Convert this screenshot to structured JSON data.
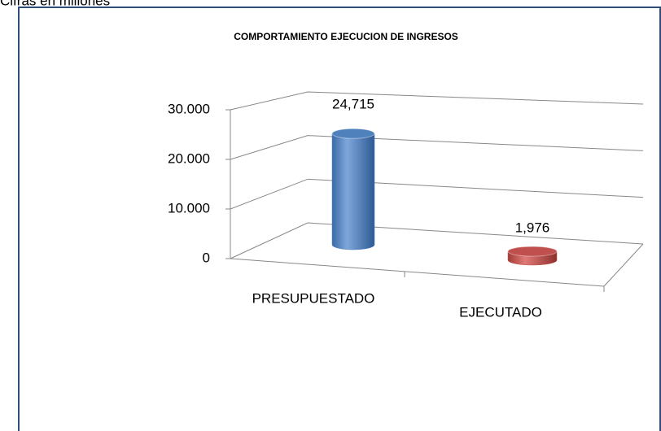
{
  "note_text": "Cifras en millones",
  "chart_data": {
    "type": "bar3d",
    "title": "COMPORTAMIENTO EJECUCION DE INGRESOS",
    "categories": [
      "PRESUPUESTADO",
      "EJECUTADO"
    ],
    "values": [
      24715,
      1976
    ],
    "value_labels": [
      "24,715",
      "1,976"
    ],
    "colors": [
      "#4f81bd",
      "#c0504d"
    ],
    "ylim": [
      0,
      30000
    ],
    "yticks": [
      0,
      {
        "value": 10000,
        "label": "10.000"
      },
      {
        "value": 20000,
        "label": "20.000"
      },
      {
        "value": 30000,
        "label": "30.000"
      }
    ],
    "grid": true
  }
}
